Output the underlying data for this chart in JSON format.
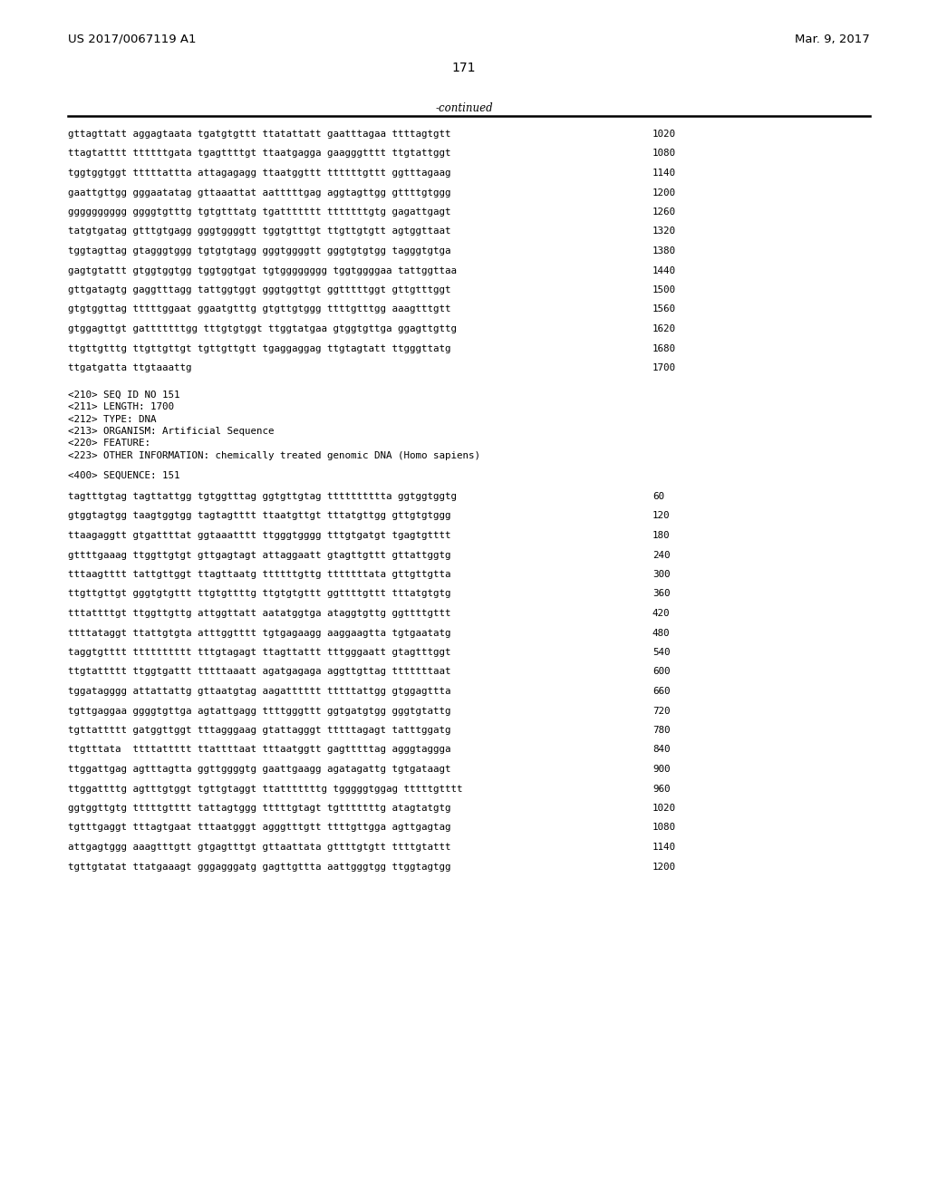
{
  "header_left": "US 2017/0067119 A1",
  "header_right": "Mar. 9, 2017",
  "page_number": "171",
  "continued_text": "-continued",
  "background_color": "#ffffff",
  "text_color": "#000000",
  "seq1": [
    [
      "gttagttatt aggagtaata tgatgtgttt ttatattatt gaatttagaa ttttagtgtt",
      "1020"
    ],
    [
      "ttagtatttt ttttttgata tgagttttgt ttaatgagga gaagggtttt ttgtattggt",
      "1080"
    ],
    [
      "tggtggtggt tttttattta attagagagg ttaatggttt ttttttgttt ggtttagaag",
      "1140"
    ],
    [
      "gaattgttgg gggaatatag gttaaattat aatttttgag aggtagttgg gttttgtggg",
      "1200"
    ],
    [
      "gggggggggg ggggtgtttg tgtgtttatg tgattttttt tttttttgtg gagattgagt",
      "1260"
    ],
    [
      "tatgtgatag gtttgtgagg gggtggggtt tggtgtttgt ttgttgtgtt agtggttaat",
      "1320"
    ],
    [
      "tggtagttag gtagggtggg tgtgtgtagg gggtggggtt gggtgtgtgg tagggtgtga",
      "1380"
    ],
    [
      "gagtgtattt gtggtggtgg tggtggtgat tgtgggggggg tggtggggaa tattggttaa",
      "1440"
    ],
    [
      "gttgatagtg gaggtttagg tattggtggt gggtggttgt ggtttttggt gttgtttggt",
      "1500"
    ],
    [
      "gtgtggttag tttttggaat ggaatgtttg gtgttgtggg ttttgtttgg aaagtttgtt",
      "1560"
    ],
    [
      "gtggagttgt gatttttttgg tttgtgtggt ttggtatgaa gtggtgttga ggagttgttg",
      "1620"
    ],
    [
      "ttgttgtttg ttgttgttgt tgttgttgtt tgaggaggag ttgtagtatt ttgggttatg",
      "1680"
    ],
    [
      "ttgatgatta ttgtaaattg",
      "1700"
    ]
  ],
  "seq_info": [
    "<210> SEQ ID NO 151",
    "<211> LENGTH: 1700",
    "<212> TYPE: DNA",
    "<213> ORGANISM: Artificial Sequence",
    "<220> FEATURE:",
    "<223> OTHER INFORMATION: chemically treated genomic DNA (Homo sapiens)"
  ],
  "seq400_label": "<400> SEQUENCE: 151",
  "seq2": [
    [
      "tagtttgtag tagttattgg tgtggtttag ggtgttgtag tttttttttta ggtggtggtg",
      "60"
    ],
    [
      "gtggtagtgg taagtggtgg tagtagtttt ttaatgttgt tttatgttgg gttgtgtggg",
      "120"
    ],
    [
      "ttaagaggtt gtgattttat ggtaaatttt ttgggtgggg tttgtgatgt tgagtgtttt",
      "180"
    ],
    [
      "gttttgaaag ttggttgtgt gttgagtagt attaggaatt gtagttgttt gttattggtg",
      "240"
    ],
    [
      "tttaagtttt tattgttggt ttagttaatg ttttttgttg tttttttata gttgttgtta",
      "300"
    ],
    [
      "ttgttgttgt gggtgtgttt ttgtgttttg ttgtgtgttt ggttttgttt tttatgtgtg",
      "360"
    ],
    [
      "tttattttgt ttggttgttg attggttatt aatatggtga ataggtgttg ggttttgttt",
      "420"
    ],
    [
      "ttttataggt ttattgtgta atttggtttt tgtgagaagg aaggaagtta tgtgaatatg",
      "480"
    ],
    [
      "taggtgtttt tttttttttt tttgtagagt ttagttattt tttgggaatt gtagtttggt",
      "540"
    ],
    [
      "ttgtattttt ttggtgattt tttttaaatt agatgagaga aggttgttag tttttttaat",
      "600"
    ],
    [
      "tggatagggg attattattg gttaatgtag aagatttttt tttttattgg gtggagttta",
      "660"
    ],
    [
      "tgttgaggaa ggggtgttga agtattgagg ttttgggttt ggtgatgtgg gggtgtattg",
      "720"
    ],
    [
      "tgttattttt gatggttggt tttagggaag gtattagggt tttttagagt tatttggatg",
      "780"
    ],
    [
      "ttgtttata  ttttattttt ttattttaat tttaatggtt gagtttttag agggtaggga",
      "840"
    ],
    [
      "ttggattgag agtttagtta ggttggggtg gaattgaagg agatagattg tgtgataagt",
      "900"
    ],
    [
      "ttggattttg agtttgtggt tgttgtaggt ttatttttttg tgggggtggag tttttgtttt",
      "960"
    ],
    [
      "ggtggttgtg tttttgtttt tattagtggg tttttgtagt tgtttttttg atagtatgtg",
      "1020"
    ],
    [
      "tgtttgaggt tttagtgaat tttaatgggt agggtttgtt ttttgttgga agttgagtag",
      "1080"
    ],
    [
      "attgagtggg aaagtttgtt gtgagtttgt gttaattata gttttgtgtt ttttgtattt",
      "1140"
    ],
    [
      "tgttgtatat ttatgaaagt gggagggatg gagttgttta aattgggtgg ttggtagtgg",
      "1200"
    ]
  ]
}
